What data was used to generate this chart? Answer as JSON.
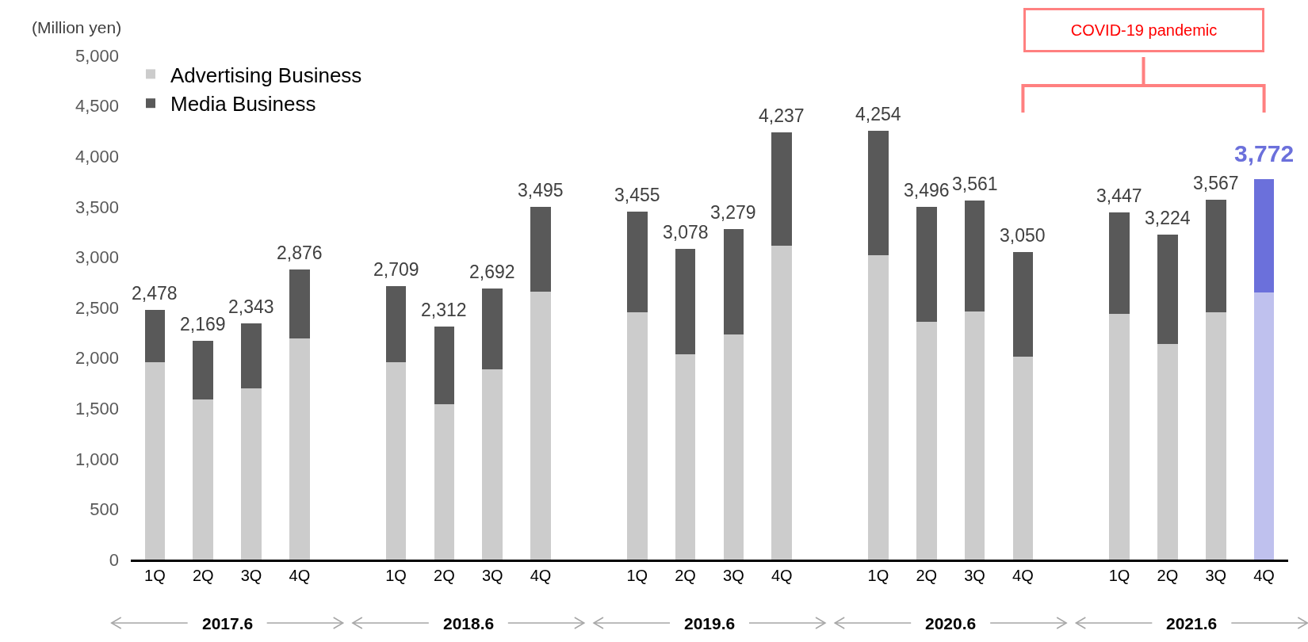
{
  "chart_data": {
    "type": "bar",
    "stacked": true,
    "ylabel": "(Million yen)",
    "categories": [
      "1Q",
      "2Q",
      "3Q",
      "4Q",
      null,
      "1Q",
      "2Q",
      "3Q",
      "4Q",
      null,
      "1Q",
      "2Q",
      "3Q",
      "4Q",
      null,
      "1Q",
      "2Q",
      "3Q",
      "4Q",
      null,
      "1Q",
      "2Q",
      "3Q",
      "4Q"
    ],
    "series": [
      {
        "name": "Advertising Business",
        "color": "#cccccc",
        "colors": [
          "#cccccc",
          "#cccccc",
          "#cccccc",
          "#cccccc",
          null,
          "#cccccc",
          "#cccccc",
          "#cccccc",
          "#cccccc",
          null,
          "#cccccc",
          "#cccccc",
          "#cccccc",
          "#cccccc",
          null,
          "#cccccc",
          "#cccccc",
          "#cccccc",
          "#cccccc",
          null,
          "#cccccc",
          "#cccccc",
          "#cccccc",
          "#bfc1ee"
        ],
        "values": [
          1960,
          1590,
          1700,
          2190,
          null,
          1960,
          1540,
          1890,
          2660,
          null,
          2450,
          2040,
          2230,
          3110,
          null,
          3020,
          2360,
          2460,
          2010,
          null,
          2440,
          2140,
          2450,
          2650
        ]
      },
      {
        "name": "Media Business",
        "color": "#595959",
        "colors": [
          "#595959",
          "#595959",
          "#595959",
          "#595959",
          null,
          "#595959",
          "#595959",
          "#595959",
          "#595959",
          null,
          "#595959",
          "#595959",
          "#595959",
          "#595959",
          null,
          "#595959",
          "#595959",
          "#595959",
          "#595959",
          null,
          "#595959",
          "#595959",
          "#595959",
          "#6b70db"
        ],
        "values": [
          518,
          579,
          643,
          686,
          null,
          749,
          772,
          802,
          835,
          null,
          1005,
          1038,
          1049,
          1127,
          null,
          1234,
          1136,
          1101,
          1040,
          null,
          1007,
          1084,
          1117,
          1122
        ]
      }
    ],
    "totals": [
      "2,478",
      "2,169",
      "2,343",
      "2,876",
      null,
      "2,709",
      "2,312",
      "2,692",
      "3,495",
      null,
      "3,455",
      "3,078",
      "3,279",
      "4,237",
      null,
      "4,254",
      "3,496",
      "3,561",
      "3,050",
      null,
      "3,447",
      "3,224",
      "3,567",
      "3,772"
    ],
    "ylim": [
      0,
      5000
    ],
    "yticks": [
      0,
      500,
      {
        "value": 1000,
        "label": "1,000"
      },
      {
        "value": 1500,
        "label": "1,500"
      },
      {
        "value": 2000,
        "label": "2,000"
      },
      {
        "value": 2500,
        "label": "2,500"
      },
      {
        "value": 3000,
        "label": "3,000"
      },
      {
        "value": 3500,
        "label": "3,500"
      },
      {
        "value": 4000,
        "label": "4,000"
      },
      {
        "value": 4500,
        "label": "4,500"
      },
      {
        "value": 5000,
        "label": "5,000"
      }
    ],
    "grid": false,
    "legend": "top left",
    "annotations": [
      "2017.6",
      "2018.6",
      "2019.6",
      "2020.6",
      "2021.6",
      "COVID-19 pandemic"
    ]
  }
}
